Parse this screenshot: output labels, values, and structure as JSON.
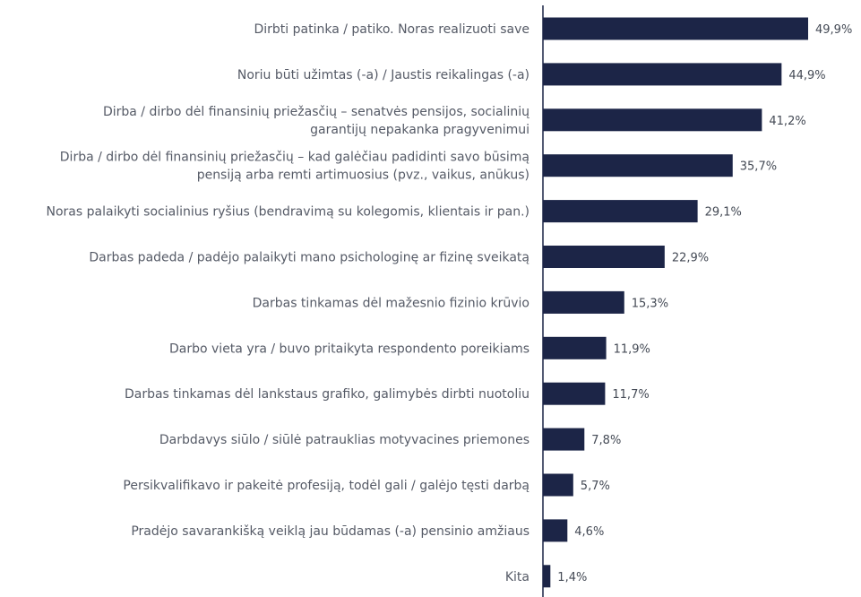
{
  "chart_data": {
    "type": "bar",
    "orientation": "horizontal",
    "categories": [
      [
        "Dirbti patinka / patiko. Noras realizuoti save"
      ],
      [
        "Noriu būti užimtas (-a) / Jaustis reikalingas (-a)"
      ],
      [
        "Dirba / dirbo dėl finansinių priežasčių – senatvės pensijos, socialinių",
        "garantijų nepakanka pragyvenimui"
      ],
      [
        "Dirba / dirbo dėl finansinių priežasčių – kad galėčiau padidinti savo būsimą",
        "pensiją arba remti artimuosius (pvz., vaikus, anūkus)"
      ],
      [
        "Noras palaikyti socialinius ryšius (bendravimą su kolegomis, klientais ir pan.)"
      ],
      [
        "Darbas padeda / padėjo palaikyti mano psichologinę ar fizinę sveikatą"
      ],
      [
        "Darbas tinkamas dėl mažesnio fizinio krūvio"
      ],
      [
        "Darbo vieta yra / buvo pritaikyta respondento poreikiams"
      ],
      [
        "Darbas tinkamas dėl lankstaus grafiko, galimybės dirbti nuotoliu"
      ],
      [
        "Darbdavys siūlo / siūlė patrauklias motyvacines priemones"
      ],
      [
        "Persikvalifikavo ir pakeitė profesiją, todėl gali / galėjo tęsti darbą"
      ],
      [
        "Pradėjo savarankišką veiklą jau būdamas (-a) pensinio amžiaus"
      ],
      [
        "Kita"
      ]
    ],
    "values": [
      49.9,
      44.9,
      41.2,
      35.7,
      29.1,
      22.9,
      15.3,
      11.9,
      11.7,
      7.8,
      5.7,
      4.6,
      1.4
    ],
    "value_labels": [
      "49,9%",
      "44,9%",
      "41,2%",
      "35,7%",
      "29,1%",
      "22,9%",
      "15,3%",
      "11,9%",
      "11,7%",
      "7,8%",
      "5,7%",
      "4,6%",
      "1,4%"
    ],
    "bar_color": "#1c2547",
    "axis_color": "#1c2547",
    "grid": false,
    "legend": false
  }
}
